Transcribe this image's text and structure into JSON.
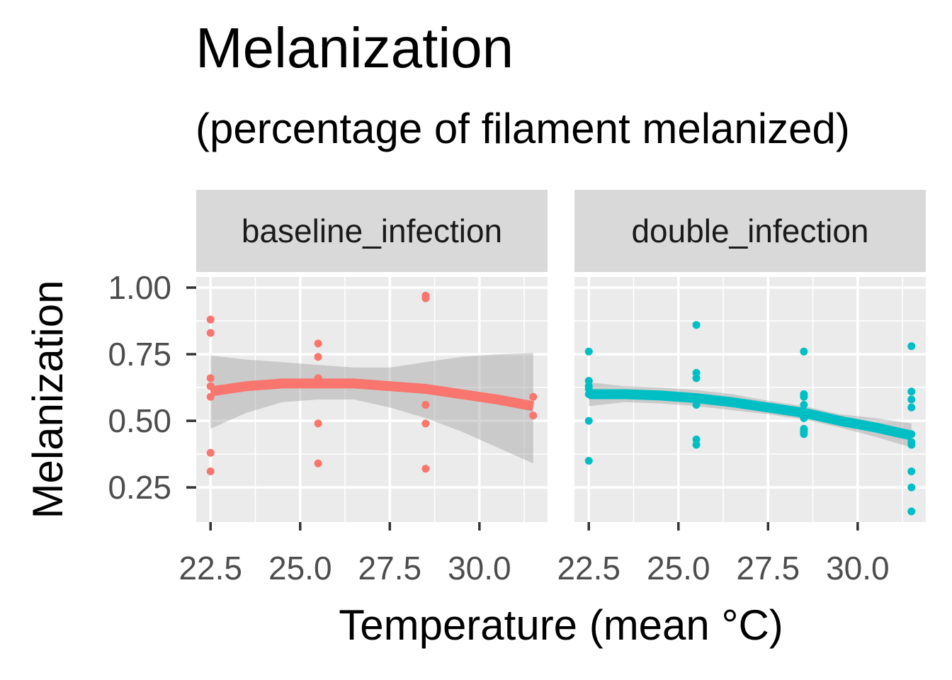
{
  "chart_data": {
    "type": "scatter",
    "title": "Melanization",
    "subtitle": "(percentage of filament melanized)",
    "xlabel": "Temperature (mean °C)",
    "ylabel": "Melanization",
    "x_ticks": [
      22.5,
      25.0,
      27.5,
      30.0
    ],
    "x_tick_labels": [
      "22.5",
      "25.0",
      "27.5",
      "30.0"
    ],
    "y_ticks": [
      0.25,
      0.5,
      0.75,
      1.0
    ],
    "y_tick_labels": [
      "0.25",
      "0.50",
      "0.75",
      "1.00"
    ],
    "xlim": [
      22.1,
      31.9
    ],
    "ylim": [
      0.12,
      1.04
    ],
    "grid": true,
    "legend": "none",
    "panels": [
      {
        "strip_label": "baseline_infection",
        "color": "#F8766D",
        "points": [
          [
            22.5,
            0.88
          ],
          [
            22.5,
            0.83
          ],
          [
            22.5,
            0.66
          ],
          [
            22.5,
            0.63
          ],
          [
            22.5,
            0.59
          ],
          [
            22.5,
            0.38
          ],
          [
            22.5,
            0.31
          ],
          [
            25.5,
            0.79
          ],
          [
            25.5,
            0.74
          ],
          [
            25.5,
            0.66
          ],
          [
            25.5,
            0.49
          ],
          [
            25.5,
            0.34
          ],
          [
            28.5,
            0.97
          ],
          [
            28.5,
            0.96
          ],
          [
            28.5,
            0.56
          ],
          [
            28.5,
            0.49
          ],
          [
            28.5,
            0.32
          ],
          [
            31.5,
            0.59
          ],
          [
            31.5,
            0.52
          ]
        ],
        "fit_x": [
          22.5,
          23.5,
          24.5,
          25.5,
          26.5,
          27.5,
          28.5,
          29.5,
          30.5,
          31.5
        ],
        "fit_y": [
          0.61,
          0.63,
          0.64,
          0.64,
          0.64,
          0.63,
          0.62,
          0.6,
          0.58,
          0.555
        ],
        "ci_lower": [
          0.47,
          0.53,
          0.57,
          0.58,
          0.58,
          0.55,
          0.51,
          0.46,
          0.4,
          0.34
        ],
        "ci_upper": [
          0.745,
          0.73,
          0.72,
          0.71,
          0.7,
          0.7,
          0.72,
          0.74,
          0.75,
          0.755
        ]
      },
      {
        "strip_label": "double_infection",
        "color": "#00BFC4",
        "points": [
          [
            22.5,
            0.76
          ],
          [
            22.5,
            0.65
          ],
          [
            22.5,
            0.63
          ],
          [
            22.5,
            0.62
          ],
          [
            22.5,
            0.6
          ],
          [
            22.5,
            0.5
          ],
          [
            22.5,
            0.35
          ],
          [
            25.5,
            0.86
          ],
          [
            25.5,
            0.68
          ],
          [
            25.5,
            0.66
          ],
          [
            25.5,
            0.56
          ],
          [
            25.5,
            0.43
          ],
          [
            25.5,
            0.41
          ],
          [
            28.5,
            0.76
          ],
          [
            28.5,
            0.6
          ],
          [
            28.5,
            0.59
          ],
          [
            28.5,
            0.56
          ],
          [
            28.5,
            0.51
          ],
          [
            28.5,
            0.47
          ],
          [
            28.5,
            0.46
          ],
          [
            28.5,
            0.45
          ],
          [
            31.5,
            0.78
          ],
          [
            31.5,
            0.61
          ],
          [
            31.5,
            0.58
          ],
          [
            31.5,
            0.55
          ],
          [
            31.5,
            0.45
          ],
          [
            31.5,
            0.42
          ],
          [
            31.5,
            0.41
          ],
          [
            31.5,
            0.31
          ],
          [
            31.5,
            0.25
          ],
          [
            31.5,
            0.16
          ]
        ],
        "fit_x": [
          22.5,
          23.5,
          24.5,
          25.5,
          26.5,
          27.5,
          28.5,
          29.5,
          30.5,
          31.5
        ],
        "fit_y": [
          0.6,
          0.6,
          0.595,
          0.585,
          0.57,
          0.55,
          0.53,
          0.5,
          0.475,
          0.445
        ],
        "ci_lower": [
          0.555,
          0.57,
          0.565,
          0.555,
          0.54,
          0.525,
          0.505,
          0.475,
          0.44,
          0.4
        ],
        "ci_upper": [
          0.645,
          0.63,
          0.625,
          0.615,
          0.6,
          0.575,
          0.555,
          0.525,
          0.51,
          0.49
        ]
      }
    ]
  }
}
